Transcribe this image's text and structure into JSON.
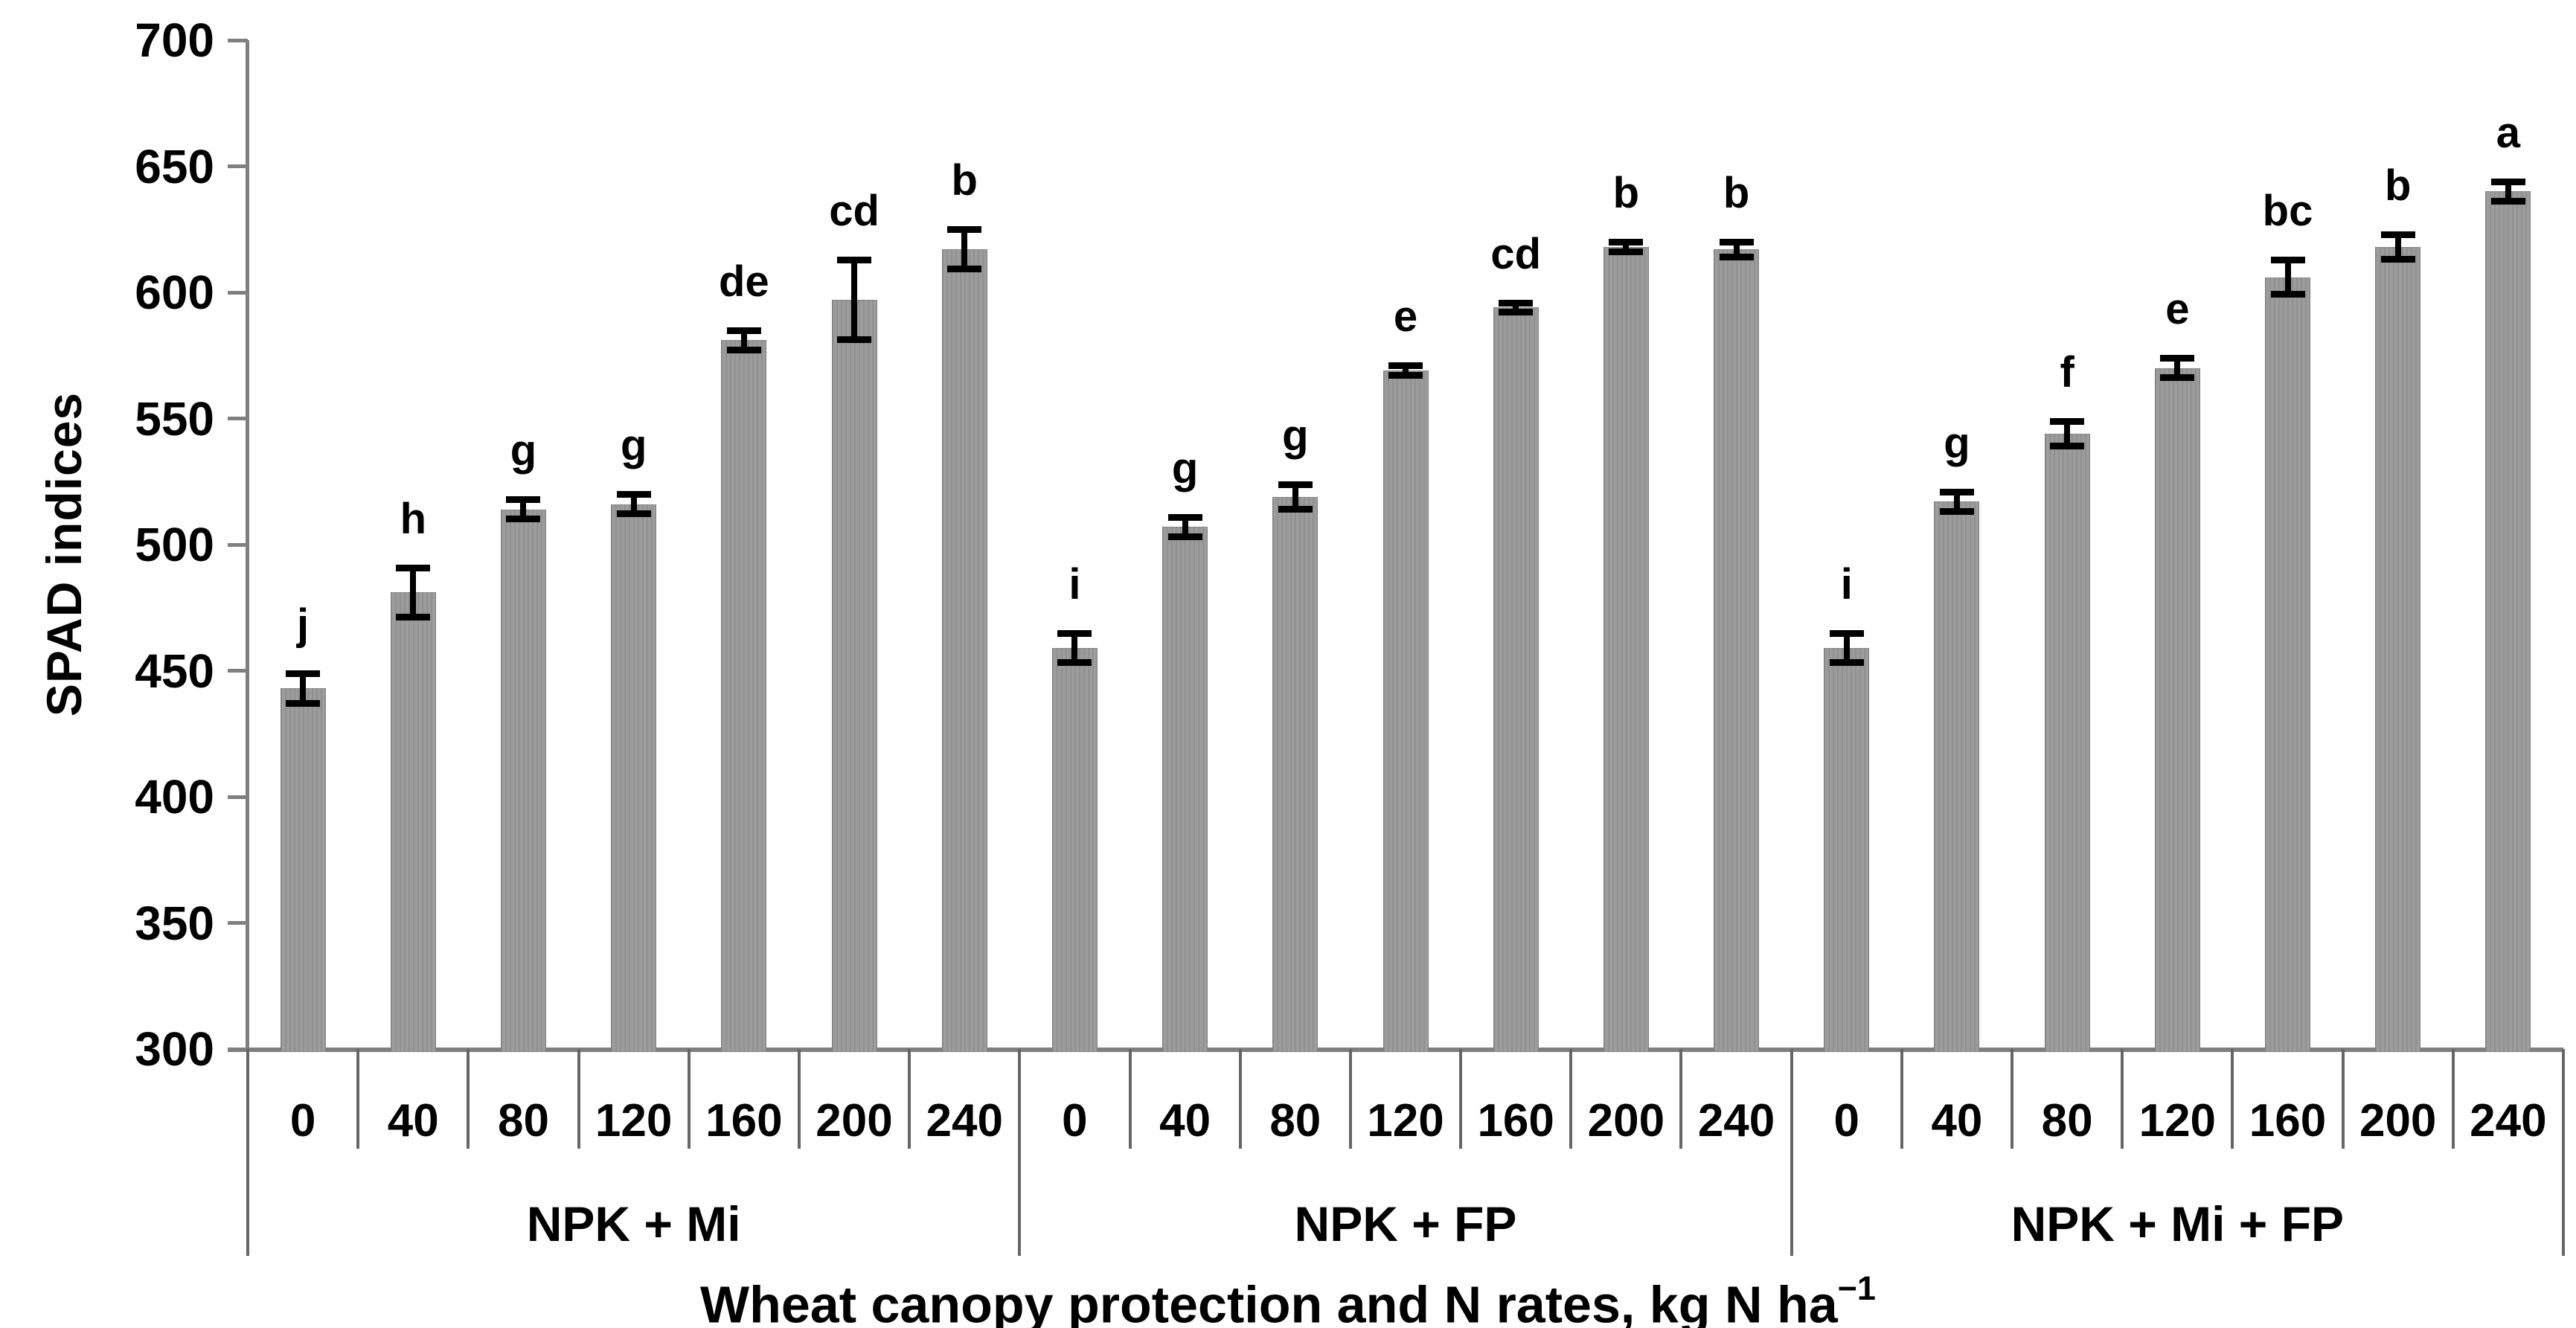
{
  "chart_data": {
    "type": "bar",
    "title": "",
    "ylabel": "SPAD indices",
    "xlabel": "Wheat canopy protection and N rates, kg N ha⁻¹",
    "xlabel_prefix": "Wheat canopy protection and N rates, kg N ha",
    "xlabel_sup": "−1",
    "ylim": [
      300,
      700
    ],
    "ytick_step": 50,
    "yticks": [
      300,
      350,
      400,
      450,
      500,
      550,
      600,
      650,
      700
    ],
    "grid": "off",
    "legend": "none",
    "categories": [
      "0",
      "40",
      "80",
      "120",
      "160",
      "200",
      "240"
    ],
    "series": [
      {
        "name": "NPK + Mi",
        "values": [
          443,
          481,
          514,
          516,
          581,
          597,
          617
        ],
        "errors": [
          6,
          10,
          4,
          4,
          4,
          16,
          8
        ],
        "letters": [
          "j",
          "h",
          "g",
          "g",
          "de",
          "cd",
          "b"
        ]
      },
      {
        "name": "NPK + FP",
        "values": [
          459,
          507,
          519,
          569,
          594,
          618,
          617
        ],
        "errors": [
          6,
          4,
          5,
          2,
          2,
          2,
          3
        ],
        "letters": [
          "i",
          "g",
          "g",
          "e",
          "cd",
          "b",
          "b"
        ]
      },
      {
        "name": "NPK + Mi + FP",
        "values": [
          459,
          517,
          544,
          570,
          606,
          618,
          640
        ],
        "errors": [
          6,
          4,
          5,
          4,
          7,
          5,
          4
        ],
        "letters": [
          "i",
          "g",
          "f",
          "e",
          "bc",
          "b",
          "a"
        ]
      }
    ],
    "colors": {
      "bar": "#9c9c9c",
      "axis": "#7f7f7f",
      "separator": "#666666",
      "error_bar": "#000000",
      "text": "#000000",
      "background": "#ffffff"
    }
  }
}
